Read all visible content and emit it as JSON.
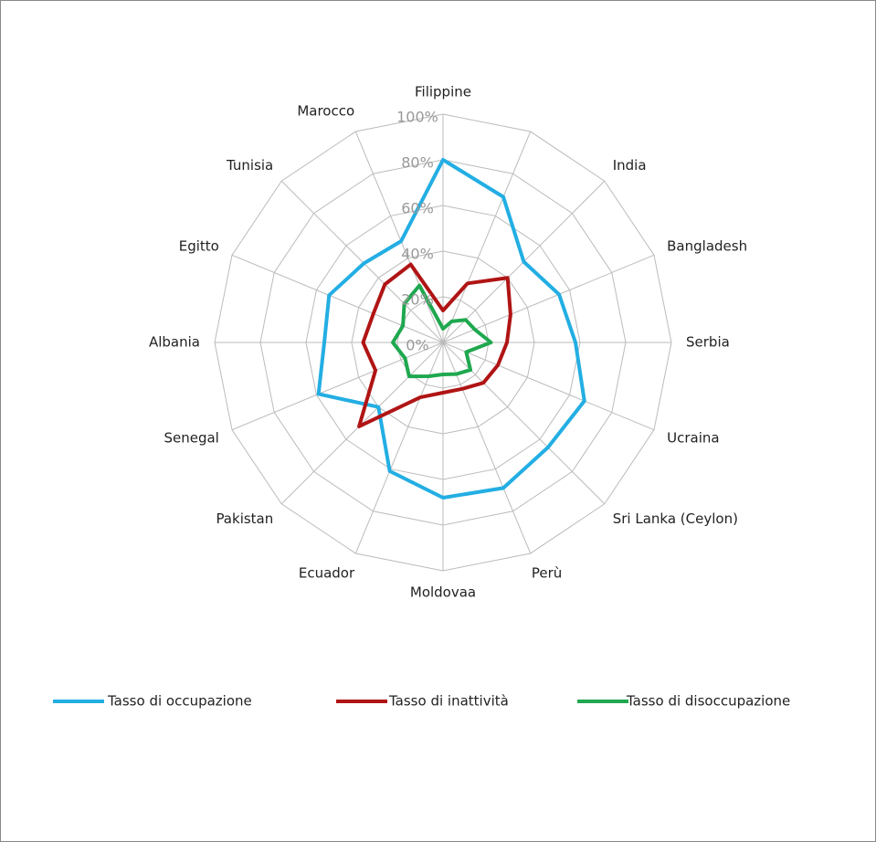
{
  "chart_data": {
    "type": "radar",
    "categories": [
      "Filippine",
      null,
      "India",
      "Bangladesh",
      "Serbia",
      "Ucraina",
      "Sri Lanka (Ceylon)",
      "Perù",
      "Moldovaa",
      "Ecuador",
      "Pakistan",
      "Senegal",
      "Albania",
      "Egitto",
      "Tunisia",
      "Marocco"
    ],
    "series": [
      {
        "name": "Tasso di occupazione",
        "color": "#23aee3",
        "values": [
          80,
          69,
          50,
          55,
          58,
          67,
          65,
          69,
          68,
          61,
          40,
          59,
          52,
          54,
          49,
          48
        ]
      },
      {
        "name": "Tasso di inattività",
        "color": "#b01414",
        "values": [
          14,
          28,
          40,
          32,
          28,
          26,
          25,
          22,
          22,
          26,
          52,
          32,
          35,
          33,
          36,
          37
        ]
      },
      {
        "name": "Tasso di disoccupazione",
        "color": "#1fa84f",
        "values": [
          6,
          10,
          14,
          15,
          21,
          11,
          17,
          15,
          14,
          16,
          21,
          18,
          22,
          19,
          24,
          27
        ]
      }
    ],
    "ylim": [
      0,
      100
    ],
    "yticks": [
      {
        "value": 0,
        "label": "0%"
      },
      {
        "value": 20,
        "label": "20%"
      },
      {
        "value": 40,
        "label": "40%"
      },
      {
        "value": 60,
        "label": "60%"
      },
      {
        "value": 80,
        "label": "80%"
      },
      {
        "value": 100,
        "label": "100%"
      }
    ],
    "grid": true,
    "legend": "bottom"
  }
}
